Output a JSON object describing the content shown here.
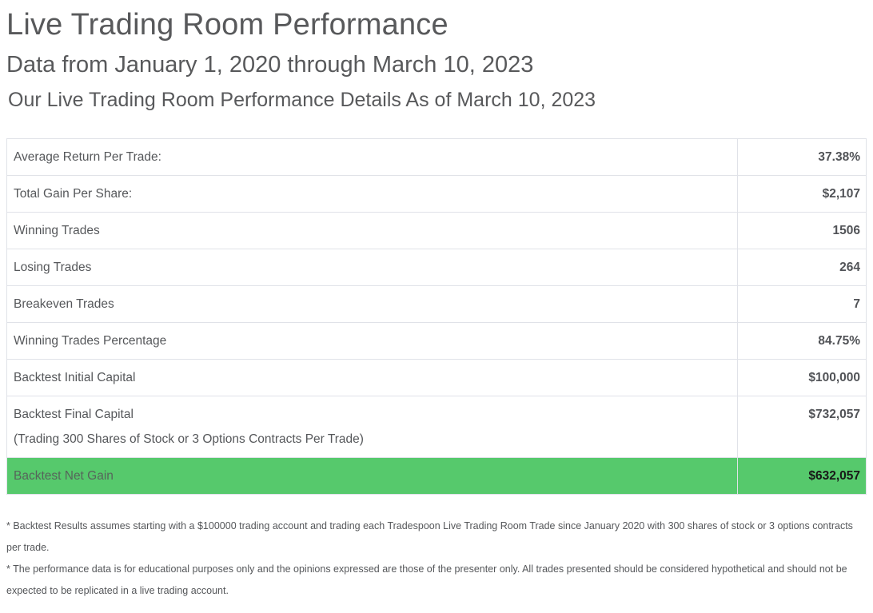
{
  "header": {
    "title": "Live Trading Room Performance",
    "subtitle": "Data from January 1, 2020 through March 10, 2023",
    "detail": "Our Live Trading Room Performance Details As of March 10, 2023"
  },
  "table": {
    "rows": [
      {
        "label": "Average Return Per Trade:",
        "value": "37.38%"
      },
      {
        "label": "Total Gain Per Share:",
        "value": "$2,107"
      },
      {
        "label": "Winning Trades",
        "value": "1506"
      },
      {
        "label": "Losing Trades",
        "value": "264"
      },
      {
        "label": "Breakeven Trades",
        "value": "7"
      },
      {
        "label": "Winning Trades Percentage",
        "value": "84.75%"
      },
      {
        "label": "Backtest Initial Capital",
        "value": "$100,000"
      },
      {
        "label": "Backtest Final Capital",
        "sublabel": "(Trading 300 Shares of Stock or 3 Options Contracts Per Trade)",
        "value": "$732,057"
      },
      {
        "label": "Backtest Net Gain",
        "value": "$632,057",
        "highlight": true
      }
    ]
  },
  "footnotes": [
    "* Backtest Results assumes starting with a $100000 trading account and trading each Tradespoon Live Trading Room Trade since January 2020 with 300 shares of stock or 3 options contracts per trade.",
    "* The performance data is for educational purposes only and the opinions expressed are those of the presenter only. All trades presented should be considered hypothetical and should not be expected to be replicated in a live trading account."
  ],
  "colors": {
    "highlight_green": "#56c96c",
    "border": "#e0e2e8",
    "heading_text": "#58595b",
    "body_text": "#55575a",
    "highlight_value_text": "#181818"
  }
}
